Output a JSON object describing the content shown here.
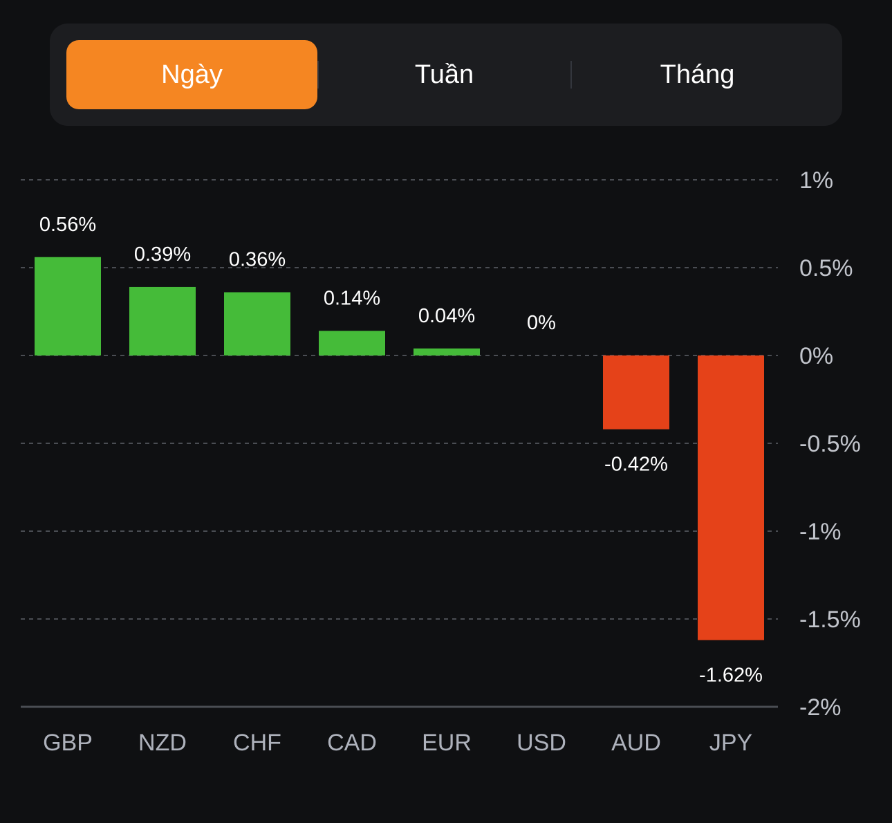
{
  "period_tabs": {
    "items": [
      {
        "label": "Ngày",
        "active": true
      },
      {
        "label": "Tuần",
        "active": false
      },
      {
        "label": "Tháng",
        "active": false
      }
    ],
    "active_color": "#f58622"
  },
  "chart_data": {
    "type": "bar",
    "title": "",
    "xlabel": "",
    "ylabel": "",
    "categories": [
      "GBP",
      "NZD",
      "CHF",
      "CAD",
      "EUR",
      "USD",
      "AUD",
      "JPY"
    ],
    "values": [
      0.56,
      0.39,
      0.36,
      0.14,
      0.04,
      0,
      -0.42,
      -1.62
    ],
    "value_labels": [
      "0.56%",
      "0.39%",
      "0.36%",
      "0.14%",
      "0.04%",
      "0%",
      "-0.42%",
      "-1.62%"
    ],
    "ylim": [
      -2,
      1
    ],
    "yticks": [
      1,
      0.5,
      0,
      -0.5,
      -1,
      -1.5,
      -2
    ],
    "ytick_labels": [
      "1%",
      "0.5%",
      "0%",
      "-0.5%",
      "-1%",
      "-1.5%",
      "-2%"
    ],
    "y_axis_position": "right",
    "grid": true,
    "colors": {
      "positive": "#45bb39",
      "negative": "#e54219"
    },
    "legend": null
  }
}
